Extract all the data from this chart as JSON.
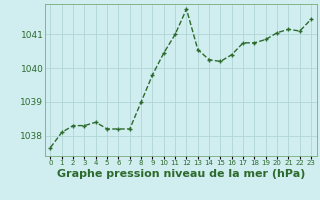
{
  "x": [
    0,
    1,
    2,
    3,
    4,
    5,
    6,
    7,
    8,
    9,
    10,
    11,
    12,
    13,
    14,
    15,
    16,
    17,
    18,
    19,
    20,
    21,
    22,
    23
  ],
  "y": [
    1037.65,
    1038.1,
    1038.3,
    1038.3,
    1038.4,
    1038.2,
    1038.2,
    1038.2,
    1039.0,
    1039.8,
    1040.45,
    1041.0,
    1041.75,
    1040.55,
    1040.25,
    1040.2,
    1040.4,
    1040.75,
    1040.75,
    1040.85,
    1041.05,
    1041.15,
    1041.1,
    1041.45
  ],
  "line_color": "#2d6a2d",
  "marker": "+",
  "marker_size": 3,
  "marker_lw": 1.0,
  "line_width": 1.0,
  "bg_color": "#d0eef0",
  "grid_color": "#b0d4d4",
  "tick_label_color": "#2d6a2d",
  "xlabel": "Graphe pression niveau de la mer (hPa)",
  "xlabel_fontsize": 8,
  "xlabel_color": "#2d6a2d",
  "yticks": [
    1038,
    1039,
    1040,
    1041
  ],
  "ytick_fontsize": 6.5,
  "ylim": [
    1037.4,
    1041.9
  ],
  "xlim": [
    -0.5,
    23.5
  ],
  "xticks": [
    0,
    1,
    2,
    3,
    4,
    5,
    6,
    7,
    8,
    9,
    10,
    11,
    12,
    13,
    14,
    15,
    16,
    17,
    18,
    19,
    20,
    21,
    22,
    23
  ],
  "xtick_fontsize": 5.0
}
